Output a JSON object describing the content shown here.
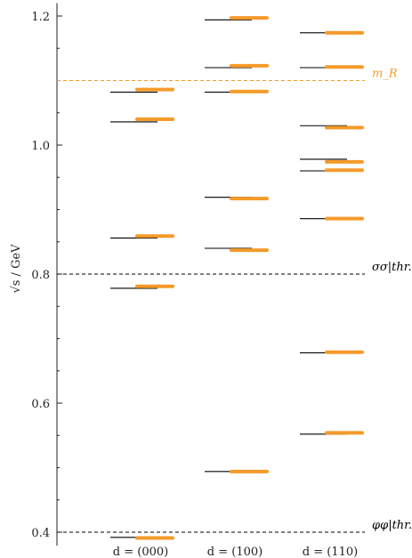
{
  "chart_data": {
    "type": "scatter",
    "title": "",
    "xlabel": "",
    "ylabel": "√s / GeV",
    "ylim": [
      0.39,
      1.22
    ],
    "yticks": [
      "0.4",
      "0.6",
      "0.8",
      "1.0",
      "1.2"
    ],
    "categories": [
      "d = (000)",
      "d = (100)",
      "d = (110)"
    ],
    "grid": false,
    "legend": "none",
    "colors": {
      "reference": "#000000",
      "result": "#f59a2a",
      "mR_line": "#f59a2a",
      "threshold_line": "#000000"
    },
    "reference_lines": [
      {
        "label": "m_R",
        "value": 1.1,
        "color": "#f59a2a"
      },
      {
        "label": "σσ|thr.",
        "value": 0.8,
        "color": "#000000"
      },
      {
        "label": "φφ|thr.",
        "value": 0.4,
        "color": "#000000"
      }
    ],
    "series": [
      {
        "category": "d = (000)",
        "reference_levels": [
          0.392,
          0.778,
          0.856,
          1.036,
          1.082
        ],
        "result_levels": [
          0.391,
          0.781,
          0.859,
          1.04,
          1.086
        ]
      },
      {
        "category": "d = (100)",
        "reference_levels": [
          0.494,
          0.84,
          0.919,
          1.082,
          1.12,
          1.194
        ],
        "result_levels": [
          0.494,
          0.837,
          0.917,
          1.083,
          1.123,
          1.197
        ]
      },
      {
        "category": "d = (110)",
        "reference_levels": [
          0.552,
          0.678,
          0.886,
          0.96,
          0.978,
          1.03,
          1.12,
          1.174
        ],
        "result_levels": [
          0.554,
          0.679,
          0.886,
          0.961,
          0.974,
          1.027,
          1.121,
          1.174
        ]
      }
    ]
  }
}
